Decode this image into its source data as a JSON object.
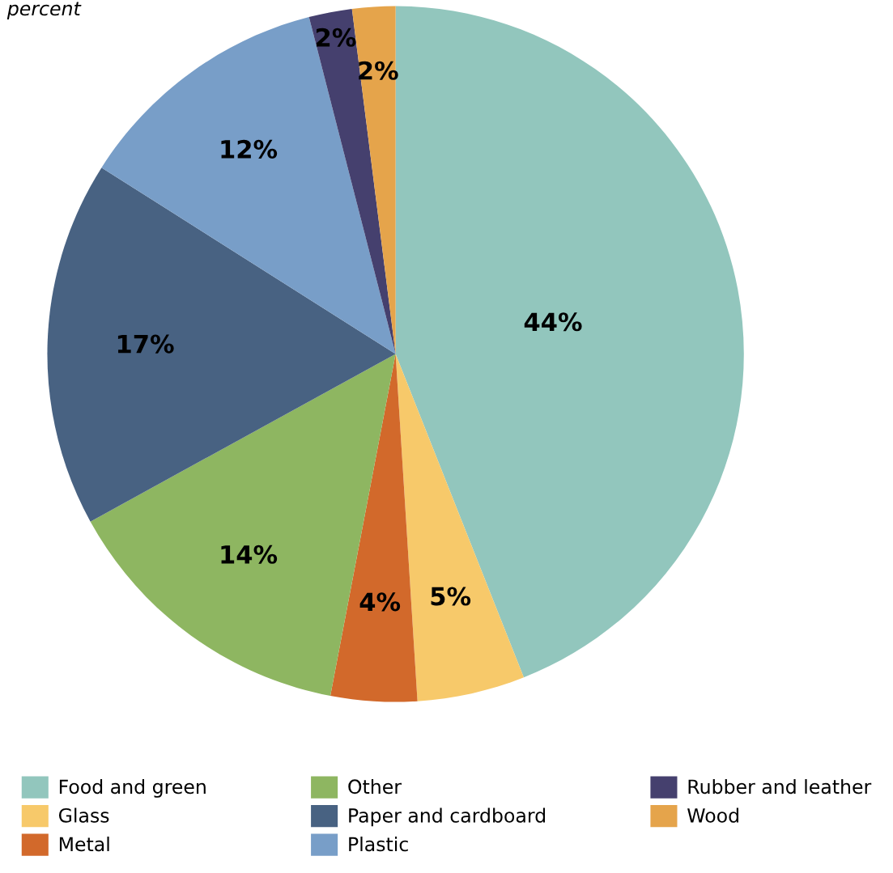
{
  "chart_data": {
    "type": "pie",
    "subtitle": "percent",
    "categories": [
      "Food and green",
      "Glass",
      "Metal",
      "Other",
      "Paper and cardboard",
      "Plastic",
      "Rubber and leather",
      "Wood"
    ],
    "values": [
      44,
      5,
      4,
      14,
      17,
      12,
      2,
      2
    ],
    "colors": [
      "#92c6bd",
      "#f7c96a",
      "#d2692b",
      "#8eb661",
      "#486282",
      "#789ec8",
      "#45406e",
      "#e5a44b"
    ],
    "value_labels": [
      "44%",
      "5%",
      "4%",
      "14%",
      "17%",
      "12%",
      "2%",
      "2%"
    ],
    "legend": "bottom"
  }
}
